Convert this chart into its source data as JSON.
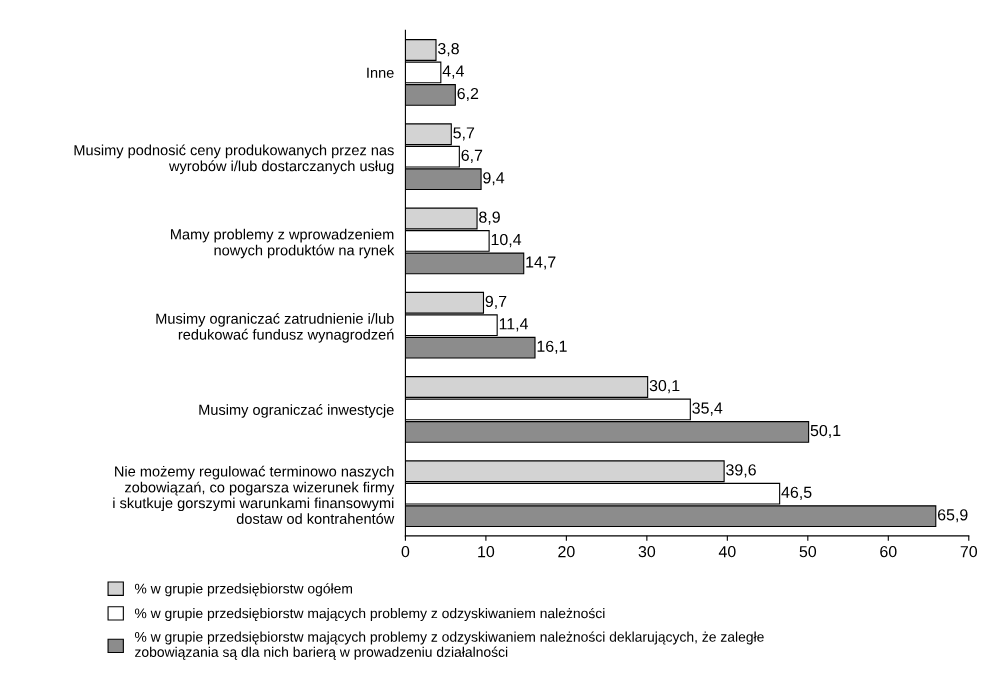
{
  "chart_data": {
    "type": "bar",
    "orientation": "horizontal",
    "categories": [
      "Inne",
      "Musimy podnosić ceny produkowanych przez nas\nwyrobów i/lub dostarczanych usług",
      "Mamy problemy z wprowadzeniem\nnowych produktów na rynek",
      "Musimy ograniczać zatrudnienie i/lub\nredukować fundusz wynagrodzeń",
      "Musimy ograniczać inwestycje",
      "Nie możemy regulować terminowo naszych\nzobowiązań, co pogarsza wizerunek firmy\ni skutkuje gorszymi warunkami finansowymi\ndostaw od kontrahentów"
    ],
    "series": [
      {
        "name": "% w grupie przedsiębiorstw ogółem",
        "color": "#d3d3d3",
        "values": [
          3.8,
          5.7,
          8.9,
          9.7,
          30.1,
          39.6
        ],
        "value_labels": [
          "3,8",
          "5,7",
          "8,9",
          "9,7",
          "30,1",
          "39,6"
        ]
      },
      {
        "name": "% w grupie przedsiębiorstw mających problemy z odzyskiwaniem należności",
        "color": "#ffffff",
        "values": [
          4.4,
          6.7,
          10.4,
          11.4,
          35.4,
          46.5
        ],
        "value_labels": [
          "4,4",
          "6,7",
          "10,4",
          "11,4",
          "35,4",
          "46,5"
        ]
      },
      {
        "name": "% w grupie przedsiębiorstw mających problemy z odzyskiwaniem należności deklarujących, że zaległe\nzobowiązania są dla nich barierą w prowadzeniu działalności",
        "color": "#8c8c8c",
        "values": [
          6.2,
          9.4,
          14.7,
          16.1,
          50.1,
          65.9
        ],
        "value_labels": [
          "6,2",
          "9,4",
          "14,7",
          "16,1",
          "50,1",
          "65,9"
        ]
      }
    ],
    "xlim": [
      0,
      70
    ],
    "xticks": [
      0,
      10,
      20,
      30,
      40,
      50,
      60,
      70
    ],
    "grid": false,
    "legend": "bottom"
  }
}
